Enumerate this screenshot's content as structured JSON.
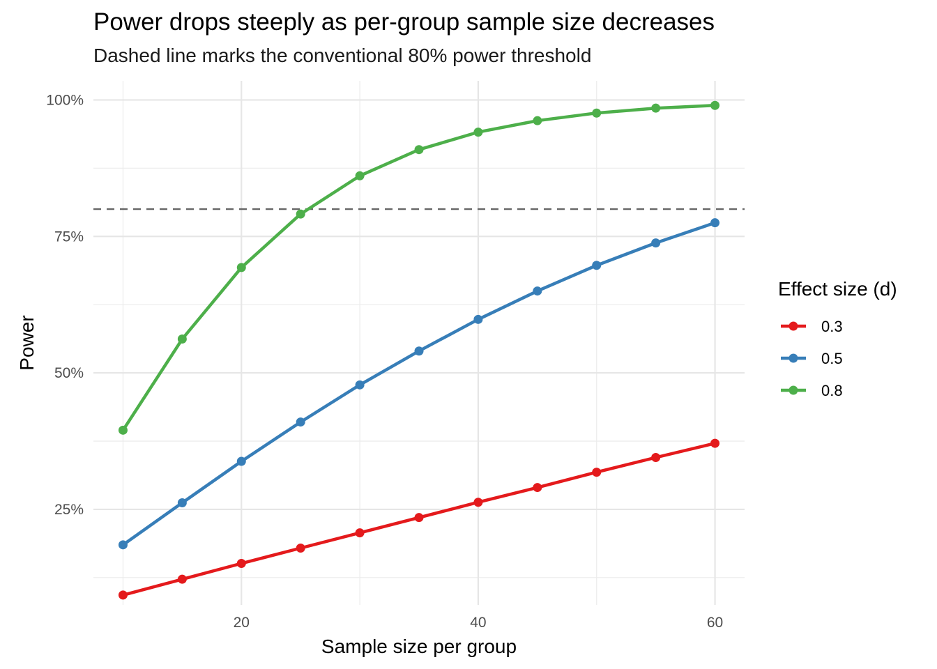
{
  "chart_data": {
    "type": "line",
    "title": "Power drops steeply as per-group sample size decreases",
    "subtitle": "Dashed line marks the conventional 80% power threshold",
    "xlabel": "Sample size per group",
    "ylabel": "Power",
    "xlim": [
      7.5,
      62.5
    ],
    "ylim": [
      0.075,
      1.035
    ],
    "x_ticks": [
      20,
      40,
      60
    ],
    "x_tick_labels": [
      "20",
      "40",
      "60"
    ],
    "y_ticks": [
      0.25,
      0.5,
      0.75,
      1.0
    ],
    "y_tick_labels": [
      "25%",
      "50%",
      "75%",
      "100%"
    ],
    "grid": true,
    "reference_line": {
      "y": 0.8,
      "style": "dashed",
      "color": "#666666"
    },
    "legend": {
      "title": "Effect size (d)",
      "position": "right"
    },
    "x": [
      10,
      15,
      20,
      25,
      30,
      35,
      40,
      45,
      50,
      55,
      60
    ],
    "series": [
      {
        "name": "0.3",
        "color": "#e41a1c",
        "values": [
          0.093,
          0.122,
          0.151,
          0.179,
          0.207,
          0.235,
          0.263,
          0.29,
          0.318,
          0.345,
          0.371
        ]
      },
      {
        "name": "0.5",
        "color": "#377eb8",
        "values": [
          0.185,
          0.262,
          0.338,
          0.41,
          0.478,
          0.54,
          0.598,
          0.65,
          0.697,
          0.738,
          0.775
        ]
      },
      {
        "name": "0.8",
        "color": "#4daf4a",
        "values": [
          0.395,
          0.562,
          0.693,
          0.791,
          0.861,
          0.909,
          0.941,
          0.962,
          0.976,
          0.985,
          0.99
        ]
      }
    ]
  }
}
